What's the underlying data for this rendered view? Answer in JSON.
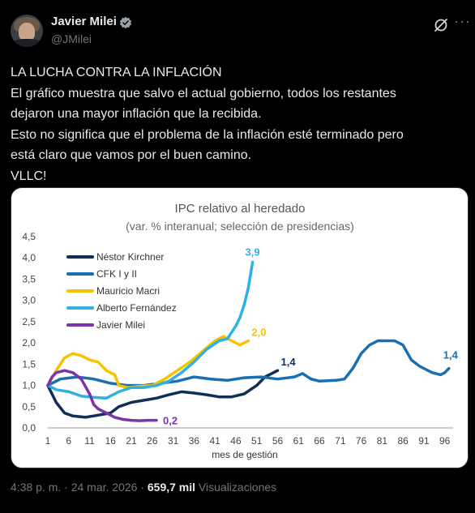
{
  "author": {
    "name": "Javier Milei",
    "handle": "@JMilei"
  },
  "icons": {
    "verified": "verified-badge-icon",
    "grok": "grok-icon",
    "more": "more-options-icon"
  },
  "tweet": {
    "lines": [
      "LA LUCHA CONTRA LA INFLACIÓN",
      "El gráfico muestra que salvo el actual gobierno, todos los restantes",
      "dejaron una mayor inflación que la recibida.",
      "Esto no significa que el problema de la inflación esté terminado pero",
      "está claro que vamos por el buen camino.",
      "VLLC!"
    ]
  },
  "chart_data": {
    "type": "line",
    "title": "IPC relativo al heredado",
    "subtitle": "(var. % interanual; selección de presidencias)",
    "xlabel": "mes de gestión",
    "ylabel": "",
    "xlim": [
      1,
      98
    ],
    "ylim": [
      0,
      4.5
    ],
    "x_ticks": [
      1,
      6,
      11,
      16,
      21,
      26,
      31,
      36,
      41,
      46,
      51,
      56,
      61,
      66,
      71,
      76,
      81,
      86,
      91,
      96
    ],
    "y_ticks": [
      "0,0",
      "0,5",
      "1,0",
      "1,5",
      "2,0",
      "2,5",
      "3,0",
      "3,5",
      "4,0",
      "4,5"
    ],
    "legend_position": "top-left",
    "series": [
      {
        "name": "Néstor Kirchner",
        "color": "#0f2f57",
        "end_label": "1,4",
        "points": [
          [
            1,
            1.0
          ],
          [
            3,
            0.6
          ],
          [
            5,
            0.35
          ],
          [
            7,
            0.28
          ],
          [
            10,
            0.25
          ],
          [
            13,
            0.3
          ],
          [
            16,
            0.35
          ],
          [
            18,
            0.5
          ],
          [
            21,
            0.6
          ],
          [
            24,
            0.65
          ],
          [
            27,
            0.7
          ],
          [
            30,
            0.78
          ],
          [
            33,
            0.85
          ],
          [
            36,
            0.82
          ],
          [
            39,
            0.78
          ],
          [
            42,
            0.73
          ],
          [
            45,
            0.73
          ],
          [
            48,
            0.8
          ],
          [
            51,
            1.0
          ],
          [
            53,
            1.2
          ],
          [
            55,
            1.3
          ],
          [
            56,
            1.35
          ]
        ]
      },
      {
        "name": "CFK I y II",
        "color": "#1a6fb3",
        "end_label": "1,4",
        "points": [
          [
            1,
            1.0
          ],
          [
            4,
            1.15
          ],
          [
            8,
            1.2
          ],
          [
            12,
            1.15
          ],
          [
            16,
            1.05
          ],
          [
            20,
            1.0
          ],
          [
            24,
            1.0
          ],
          [
            28,
            1.05
          ],
          [
            32,
            1.1
          ],
          [
            36,
            1.2
          ],
          [
            40,
            1.15
          ],
          [
            44,
            1.12
          ],
          [
            48,
            1.18
          ],
          [
            52,
            1.2
          ],
          [
            56,
            1.15
          ],
          [
            60,
            1.2
          ],
          [
            62,
            1.28
          ],
          [
            64,
            1.15
          ],
          [
            66,
            1.1
          ],
          [
            70,
            1.12
          ],
          [
            72,
            1.15
          ],
          [
            74,
            1.4
          ],
          [
            76,
            1.75
          ],
          [
            78,
            1.95
          ],
          [
            80,
            2.05
          ],
          [
            82,
            2.05
          ],
          [
            84,
            2.05
          ],
          [
            86,
            1.95
          ],
          [
            88,
            1.6
          ],
          [
            90,
            1.45
          ],
          [
            93,
            1.3
          ],
          [
            95,
            1.25
          ],
          [
            96,
            1.3
          ],
          [
            97,
            1.4
          ]
        ]
      },
      {
        "name": "Mauricio Macri",
        "color": "#f5c400",
        "end_label": "2,0",
        "points": [
          [
            1,
            1.0
          ],
          [
            3,
            1.35
          ],
          [
            5,
            1.65
          ],
          [
            7,
            1.75
          ],
          [
            9,
            1.7
          ],
          [
            11,
            1.6
          ],
          [
            13,
            1.55
          ],
          [
            15,
            1.35
          ],
          [
            17,
            1.25
          ],
          [
            18,
            1.0
          ],
          [
            20,
            0.95
          ],
          [
            23,
            0.98
          ],
          [
            26,
            1.0
          ],
          [
            29,
            1.15
          ],
          [
            32,
            1.35
          ],
          [
            35,
            1.55
          ],
          [
            38,
            1.8
          ],
          [
            41,
            2.05
          ],
          [
            43,
            2.15
          ],
          [
            45,
            2.05
          ],
          [
            47,
            1.95
          ],
          [
            49,
            2.05
          ]
        ]
      },
      {
        "name": "Alberto Fernández",
        "color": "#2fb2e3",
        "end_label": "3,9",
        "points": [
          [
            1,
            1.0
          ],
          [
            3,
            0.9
          ],
          [
            6,
            0.85
          ],
          [
            9,
            0.75
          ],
          [
            12,
            0.72
          ],
          [
            15,
            0.7
          ],
          [
            18,
            0.85
          ],
          [
            21,
            0.95
          ],
          [
            24,
            0.95
          ],
          [
            27,
            1.0
          ],
          [
            30,
            1.1
          ],
          [
            33,
            1.3
          ],
          [
            36,
            1.55
          ],
          [
            39,
            1.85
          ],
          [
            42,
            2.05
          ],
          [
            44,
            2.1
          ],
          [
            46,
            2.4
          ],
          [
            47,
            2.6
          ],
          [
            48,
            2.9
          ],
          [
            49,
            3.3
          ],
          [
            50,
            3.9
          ]
        ]
      },
      {
        "name": "Javier Milei",
        "color": "#7a35a8",
        "end_label": "0,2",
        "points": [
          [
            1,
            1.0
          ],
          [
            2,
            1.2
          ],
          [
            3,
            1.3
          ],
          [
            5,
            1.35
          ],
          [
            7,
            1.3
          ],
          [
            9,
            1.15
          ],
          [
            11,
            0.8
          ],
          [
            12,
            0.55
          ],
          [
            13,
            0.45
          ],
          [
            15,
            0.35
          ],
          [
            17,
            0.25
          ],
          [
            19,
            0.2
          ],
          [
            21,
            0.18
          ],
          [
            23,
            0.17
          ],
          [
            25,
            0.18
          ],
          [
            27,
            0.18
          ]
        ]
      }
    ]
  },
  "footer": {
    "time": "4:38 p. m. · 24 mar. 2026 · ",
    "views_count": "659,7 mil",
    "views_label": " Visualizaciones"
  }
}
